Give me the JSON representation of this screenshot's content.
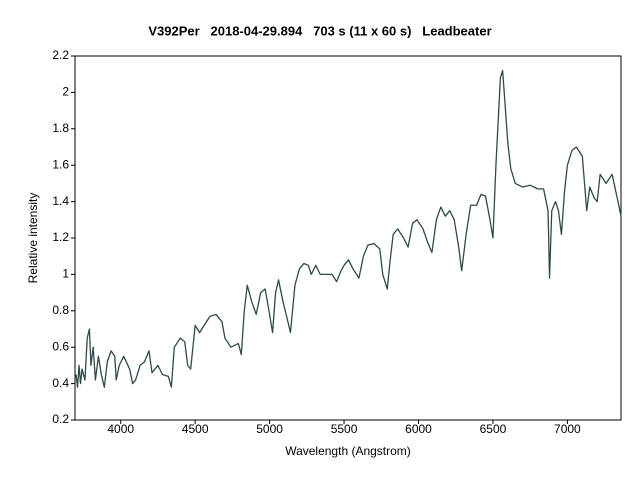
{
  "chart_data": {
    "type": "line",
    "title": "V392Per   2018-04-29.894   703 s (11 x 60 s)   Leadbeater",
    "xlabel": "Wavelength (Angstrom)",
    "ylabel": "Relative intensity",
    "color": "#2f4a4a",
    "xlim": [
      3693,
      7360
    ],
    "ylim": [
      0.2,
      2.2
    ],
    "xticks": [
      4000,
      4500,
      5000,
      5500,
      6000,
      6500,
      7000
    ],
    "yticks": [
      0.2,
      0.4,
      0.6,
      0.8,
      1,
      1.2,
      1.4,
      1.6,
      1.8,
      2,
      2.2
    ],
    "x": [
      3700,
      3710,
      3720,
      3730,
      3740,
      3760,
      3775,
      3790,
      3800,
      3815,
      3830,
      3850,
      3870,
      3890,
      3910,
      3935,
      3960,
      3970,
      3990,
      4020,
      4060,
      4080,
      4100,
      4130,
      4160,
      4190,
      4210,
      4250,
      4280,
      4320,
      4340,
      4360,
      4400,
      4430,
      4450,
      4470,
      4500,
      4530,
      4560,
      4600,
      4640,
      4680,
      4700,
      4740,
      4790,
      4810,
      4830,
      4850,
      4880,
      4910,
      4940,
      4970,
      5000,
      5020,
      5040,
      5060,
      5090,
      5120,
      5140,
      5170,
      5200,
      5230,
      5260,
      5280,
      5310,
      5340,
      5380,
      5420,
      5450,
      5480,
      5500,
      5530,
      5560,
      5600,
      5630,
      5660,
      5700,
      5740,
      5760,
      5790,
      5810,
      5830,
      5860,
      5900,
      5930,
      5960,
      5990,
      6030,
      6060,
      6090,
      6120,
      6150,
      6180,
      6210,
      6240,
      6270,
      6290,
      6320,
      6350,
      6390,
      6420,
      6450,
      6480,
      6500,
      6520,
      6550,
      6565,
      6580,
      6600,
      6620,
      6650,
      6700,
      6750,
      6800,
      6840,
      6870,
      6880,
      6895,
      6920,
      6940,
      6960,
      6980,
      7000,
      7030,
      7060,
      7100,
      7130,
      7150,
      7180,
      7200,
      7220,
      7260,
      7300,
      7340,
      7360
    ],
    "values": [
      0.45,
      0.38,
      0.5,
      0.4,
      0.48,
      0.42,
      0.65,
      0.7,
      0.5,
      0.6,
      0.42,
      0.55,
      0.45,
      0.38,
      0.52,
      0.58,
      0.55,
      0.42,
      0.5,
      0.55,
      0.48,
      0.4,
      0.42,
      0.5,
      0.52,
      0.58,
      0.46,
      0.5,
      0.45,
      0.44,
      0.38,
      0.6,
      0.65,
      0.63,
      0.5,
      0.48,
      0.72,
      0.68,
      0.72,
      0.77,
      0.78,
      0.74,
      0.65,
      0.6,
      0.62,
      0.56,
      0.8,
      0.94,
      0.85,
      0.78,
      0.9,
      0.92,
      0.78,
      0.68,
      0.9,
      0.97,
      0.85,
      0.75,
      0.68,
      0.94,
      1.03,
      1.06,
      1.05,
      1.0,
      1.05,
      1.0,
      1.0,
      1.0,
      0.96,
      1.02,
      1.05,
      1.08,
      1.03,
      0.98,
      1.1,
      1.16,
      1.17,
      1.14,
      1.0,
      0.92,
      1.08,
      1.22,
      1.25,
      1.2,
      1.15,
      1.28,
      1.3,
      1.25,
      1.18,
      1.12,
      1.3,
      1.37,
      1.32,
      1.35,
      1.3,
      1.15,
      1.02,
      1.22,
      1.38,
      1.38,
      1.44,
      1.43,
      1.3,
      1.2,
      1.6,
      2.08,
      2.12,
      1.95,
      1.72,
      1.58,
      1.5,
      1.48,
      1.49,
      1.47,
      1.47,
      1.35,
      0.98,
      1.35,
      1.4,
      1.35,
      1.22,
      1.45,
      1.6,
      1.68,
      1.7,
      1.65,
      1.35,
      1.48,
      1.42,
      1.4,
      1.55,
      1.5,
      1.55,
      1.4,
      1.32
    ]
  }
}
